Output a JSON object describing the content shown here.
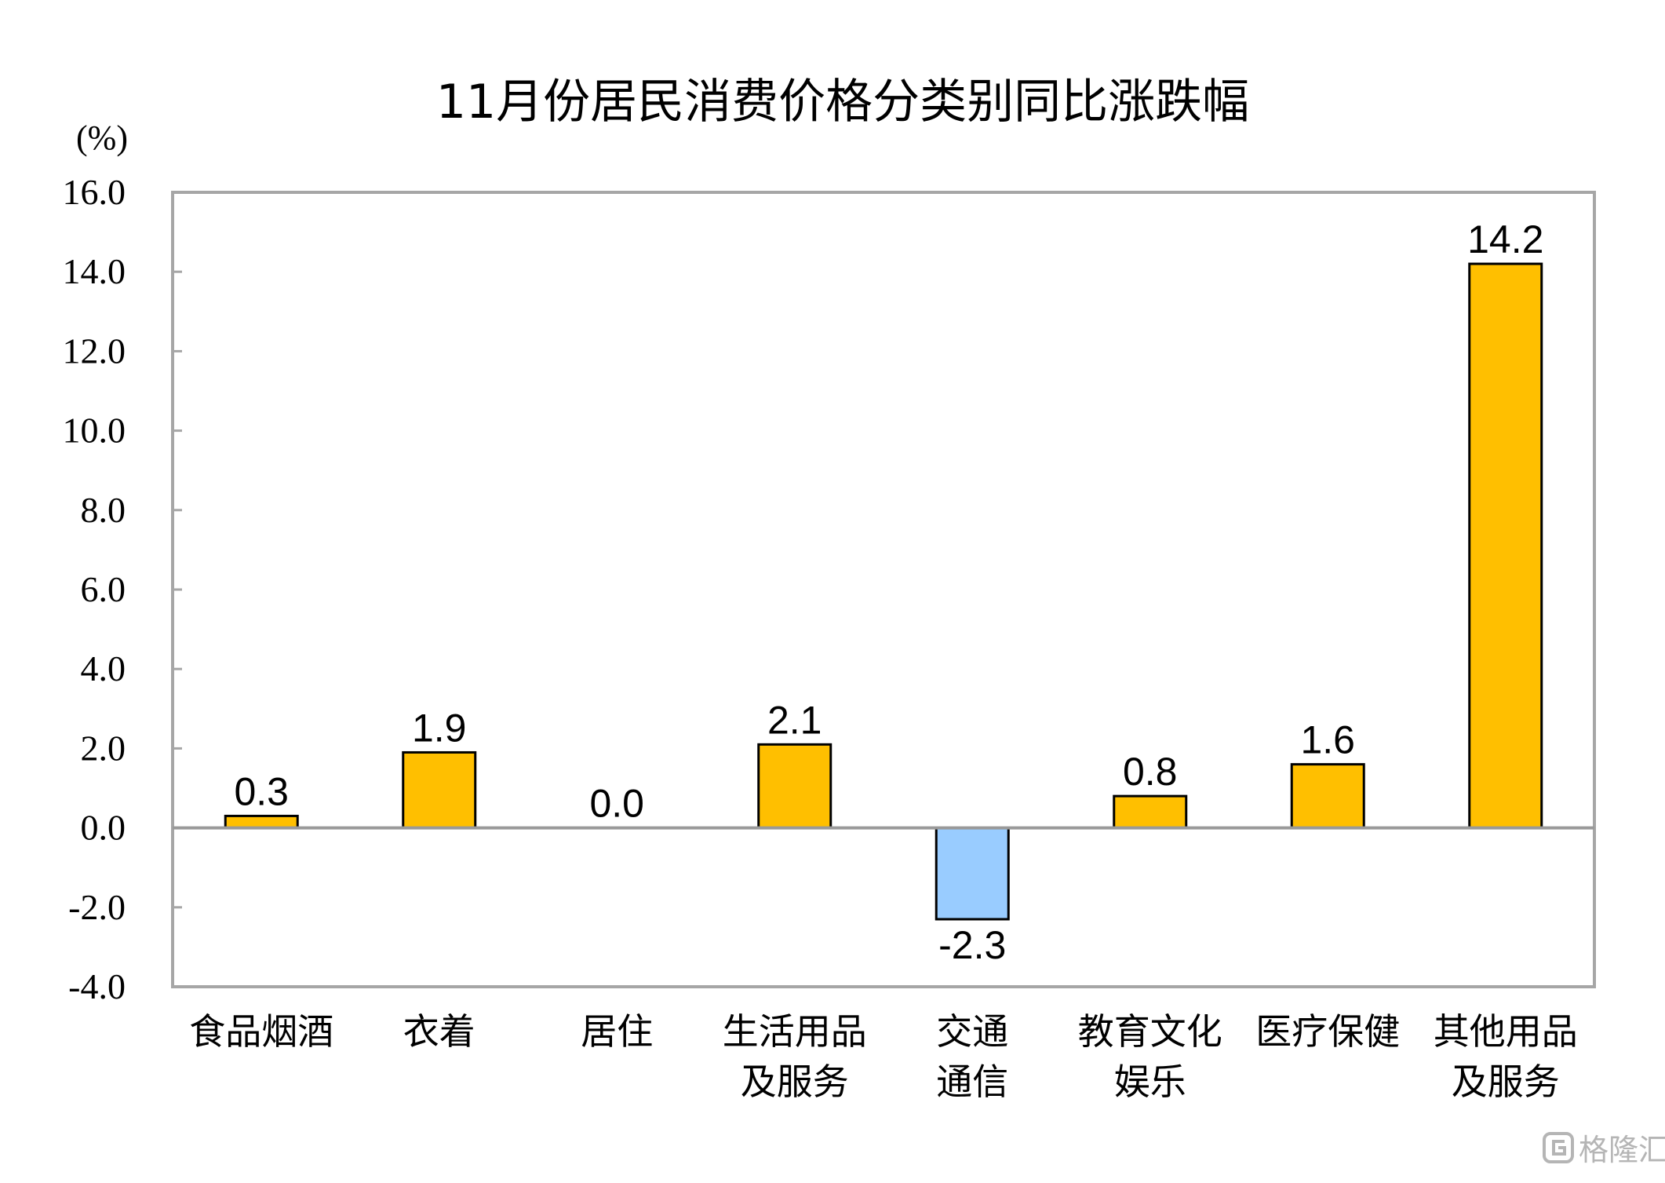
{
  "chart_data": {
    "type": "bar",
    "title": "11月份居民消费价格分类别同比涨跌幅",
    "ylabel": "(%)",
    "xlabel": "",
    "ylim": [
      -4.0,
      16.0
    ],
    "yticks": [
      16.0,
      14.0,
      12.0,
      10.0,
      8.0,
      6.0,
      4.0,
      2.0,
      0.0,
      -2.0,
      -4.0
    ],
    "categories": [
      [
        "食品烟酒"
      ],
      [
        "衣着"
      ],
      [
        "居住"
      ],
      [
        "生活用品",
        "及服务"
      ],
      [
        "交通",
        "通信"
      ],
      [
        "教育文化",
        "娱乐"
      ],
      [
        "医疗保健"
      ],
      [
        "其他用品",
        "及服务"
      ]
    ],
    "values": [
      0.3,
      1.9,
      0.0,
      2.1,
      -2.3,
      0.8,
      1.6,
      14.2
    ],
    "value_labels": [
      "0.3",
      "1.9",
      "0.0",
      "2.1",
      "-2.3",
      "0.8",
      "1.6",
      "14.2"
    ],
    "colors": {
      "positive": "#FFBF00",
      "negative": "#99CCFF",
      "axis": "#999999",
      "border": "#000000"
    },
    "grid": false,
    "legend": "none"
  },
  "watermark": {
    "text": "格隆汇",
    "icon": "gelonghui-logo-icon"
  }
}
